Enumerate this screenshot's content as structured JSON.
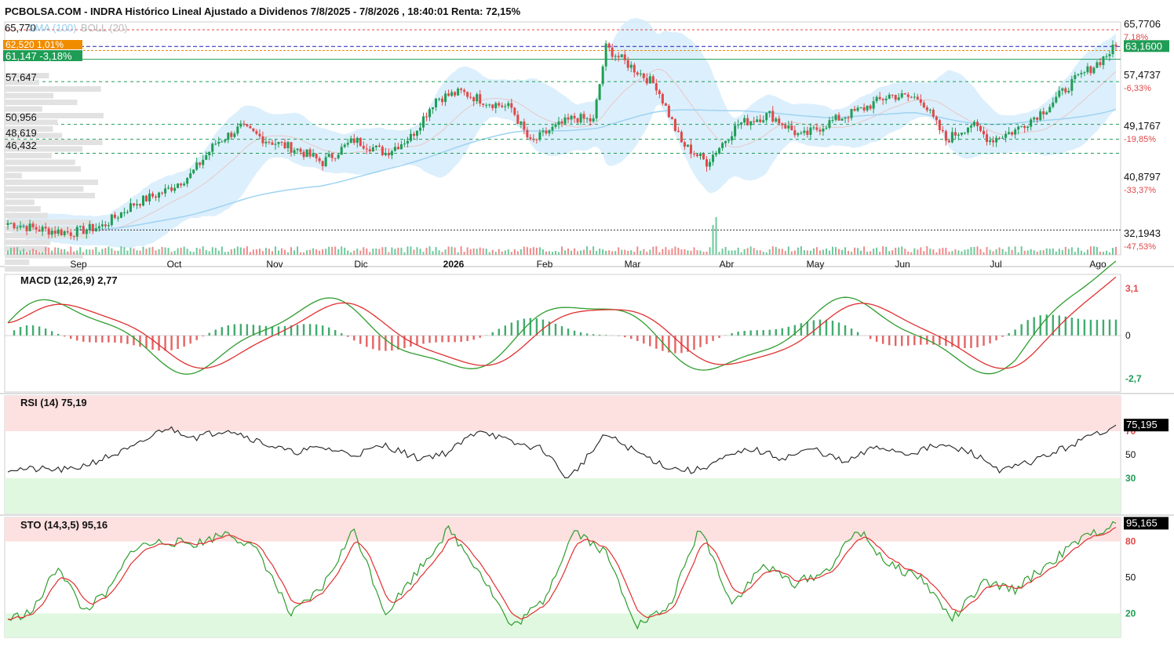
{
  "title": "PCBOLSA.COM - INDRA Histórico Lineal Ajustado a Dividenos 7/8/2025 - 7/8/2026 , 18:40:01 Renta: 72,15%",
  "colors": {
    "up": "#1f9d55",
    "down": "#e04848",
    "boll_fill": "#d6ecfb",
    "sma": "#9fd3f2",
    "macd_line": "#2e9d2e",
    "signal_line": "#e03030",
    "price_badge": "#1f9d55",
    "badge_orange": "#f08c00",
    "grid": "#dddddd"
  },
  "legend": {
    "sma_label": "SMA (100)",
    "boll_label": "BOLL (20)",
    "price_top": "65,770",
    "badge_orange_value": "62,520",
    "badge_orange_pct": "1,01%",
    "badge_green_value": "61,147",
    "badge_green_pct": "-3,18%"
  },
  "volume_profile_labels": [
    "57,647",
    "50,956",
    "48,619",
    "46,432"
  ],
  "price_axis": {
    "levels": [
      {
        "value": "65,7706",
        "pct": "7,18%",
        "pct_color": "#e04848"
      },
      {
        "value": "57,4737",
        "pct": "-6,33%",
        "pct_color": "#e04848"
      },
      {
        "value": "49,1767",
        "pct": "-19,85%",
        "pct_color": "#e04848"
      },
      {
        "value": "40,8797",
        "pct": "-33,37%",
        "pct_color": "#e04848"
      },
      {
        "value": "32,1943",
        "pct": "-47,53%",
        "pct_color": "#e04848"
      }
    ],
    "current_price": "63,1600"
  },
  "x_axis_labels": [
    "Sep",
    "Oct",
    "Nov",
    "Dic",
    "2026",
    "Feb",
    "Mar",
    "Abr",
    "May",
    "Jun",
    "Jul",
    "Ago"
  ],
  "macd": {
    "label": "MACD (12,26,9)",
    "value": "2,77",
    "axis": [
      "3,1",
      "0",
      "-2,7"
    ]
  },
  "rsi": {
    "label": "RSI (14)",
    "value": "75,19",
    "axis": [
      "70",
      "50",
      "30"
    ],
    "badge": "75,195"
  },
  "sto": {
    "label": "STO (14,3,5)",
    "value": "95,16",
    "axis": [
      "80",
      "50",
      "20"
    ],
    "badge": "95,165"
  },
  "chart_data": [
    {
      "type": "candlestick",
      "title": "INDRA",
      "price_checkpoints": {
        "x_index": [
          0,
          10,
          20,
          30,
          40,
          50,
          58,
          66,
          74,
          82,
          92,
          100,
          110,
          120,
          128,
          136,
          144,
          152,
          160,
          166,
          172,
          180,
          186,
          190,
          198,
          206,
          214,
          222,
          232,
          242,
          252,
          262,
          272,
          280,
          290,
          298,
          306,
          312,
          320,
          330,
          338,
          346,
          352
        ],
        "close": [
          35.5,
          34.5,
          34.0,
          35.0,
          38.5,
          40.5,
          43.0,
          48.0,
          50.5,
          48.5,
          47.0,
          45.0,
          48.5,
          46.5,
          49.0,
          55.0,
          56.0,
          54.5,
          53.5,
          48.0,
          50.0,
          52.0,
          51.5,
          63.0,
          60.0,
          57.0,
          48.0,
          45.0,
          51.0,
          52.5,
          49.0,
          51.5,
          53.5,
          55.5,
          55.0,
          48.5,
          51.0,
          48.5,
          50.0,
          53.5,
          57.5,
          60.5,
          63.16
        ]
      },
      "boll_band_lower_note": "Bollinger bands (20) shaded in light blue",
      "n_bars": 353
    },
    {
      "type": "line",
      "title": "RSI (14)",
      "x_index": [
        0,
        20,
        40,
        50,
        60,
        70,
        80,
        90,
        100,
        110,
        120,
        130,
        140,
        150,
        160,
        170,
        178,
        190,
        200,
        210,
        218,
        226,
        236,
        246,
        256,
        266,
        276,
        286,
        296,
        306,
        316,
        326,
        336,
        346,
        352
      ],
      "values": [
        38,
        37,
        56,
        73,
        65,
        72,
        61,
        52,
        56,
        50,
        58,
        47,
        52,
        72,
        60,
        55,
        29,
        67,
        52,
        39,
        36,
        45,
        55,
        47,
        55,
        43,
        57,
        51,
        58,
        52,
        36,
        45,
        56,
        68,
        75.19
      ],
      "ylim": [
        0,
        100
      ]
    },
    {
      "type": "line",
      "title": "STO (14,3,5)",
      "x_index": [
        0,
        8,
        16,
        24,
        32,
        40,
        50,
        60,
        70,
        80,
        90,
        100,
        110,
        120,
        130,
        140,
        150,
        160,
        170,
        180,
        190,
        200,
        210,
        220,
        230,
        240,
        250,
        260,
        270,
        280,
        290,
        300,
        310,
        320,
        330,
        340,
        346,
        352
      ],
      "values": [
        15,
        22,
        60,
        22,
        38,
        75,
        80,
        78,
        88,
        70,
        18,
        42,
        90,
        20,
        55,
        90,
        55,
        8,
        30,
        90,
        70,
        10,
        25,
        92,
        28,
        60,
        45,
        55,
        90,
        60,
        50,
        15,
        45,
        40,
        60,
        80,
        88,
        95.16
      ],
      "ylim": [
        0,
        100
      ]
    }
  ]
}
